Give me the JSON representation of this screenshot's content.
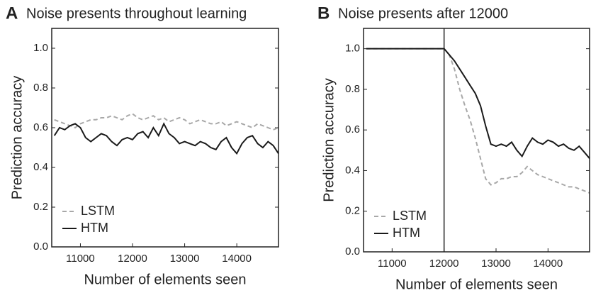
{
  "chart_data": [
    {
      "type": "line",
      "panel_label": "A",
      "title": "Noise presents throughout learning",
      "xlabel": "Number of elements seen",
      "ylabel": "Prediction accuracy",
      "x": [
        10500,
        10600,
        10700,
        10800,
        10900,
        11000,
        11100,
        11200,
        11300,
        11400,
        11500,
        11600,
        11700,
        11800,
        11900,
        12000,
        12100,
        12200,
        12300,
        12400,
        12500,
        12600,
        12700,
        12800,
        12900,
        13000,
        13100,
        13200,
        13300,
        13400,
        13500,
        13600,
        13700,
        13800,
        13900,
        14000,
        14100,
        14200,
        14300,
        14400,
        14500,
        14600,
        14700,
        14800
      ],
      "series": [
        {
          "name": "LSTM",
          "color": "#a8a8a8",
          "linestyle": "dashed",
          "values": [
            0.64,
            0.63,
            0.62,
            0.61,
            0.6,
            0.62,
            0.63,
            0.64,
            0.64,
            0.65,
            0.65,
            0.66,
            0.65,
            0.64,
            0.66,
            0.67,
            0.65,
            0.64,
            0.65,
            0.66,
            0.64,
            0.65,
            0.63,
            0.64,
            0.65,
            0.64,
            0.62,
            0.63,
            0.64,
            0.63,
            0.62,
            0.62,
            0.63,
            0.61,
            0.62,
            0.63,
            0.62,
            0.61,
            0.6,
            0.62,
            0.61,
            0.6,
            0.59,
            0.6
          ]
        },
        {
          "name": "HTM",
          "color": "#1a1a1a",
          "linestyle": "solid",
          "values": [
            0.56,
            0.6,
            0.59,
            0.61,
            0.62,
            0.6,
            0.55,
            0.53,
            0.55,
            0.57,
            0.56,
            0.53,
            0.51,
            0.54,
            0.55,
            0.54,
            0.57,
            0.58,
            0.55,
            0.6,
            0.56,
            0.62,
            0.57,
            0.55,
            0.52,
            0.53,
            0.52,
            0.51,
            0.53,
            0.52,
            0.5,
            0.49,
            0.53,
            0.55,
            0.5,
            0.47,
            0.52,
            0.55,
            0.56,
            0.52,
            0.5,
            0.53,
            0.51,
            0.47
          ]
        }
      ],
      "xlim": [
        10450,
        14800
      ],
      "xticks": [
        11000,
        12000,
        13000,
        14000
      ],
      "ylim": [
        0,
        1.1
      ],
      "yticks": [
        {
          "value": 0,
          "label": "0.0"
        },
        0.2,
        0.4,
        0.6,
        0.8,
        {
          "value": 1,
          "label": "1.0"
        }
      ],
      "legend": "lower left"
    },
    {
      "type": "line",
      "panel_label": "B",
      "title": "Noise presents after 12000",
      "xlabel": "Number of elements seen",
      "ylabel": "Prediction accuracy",
      "x": [
        10500,
        10600,
        10700,
        10800,
        10900,
        11000,
        11100,
        11200,
        11300,
        11400,
        11500,
        11600,
        11700,
        11800,
        11900,
        12000,
        12100,
        12200,
        12300,
        12400,
        12500,
        12600,
        12700,
        12800,
        12900,
        13000,
        13100,
        13200,
        13300,
        13400,
        13500,
        13600,
        13700,
        13800,
        13900,
        14000,
        14100,
        14200,
        14300,
        14400,
        14500,
        14600,
        14700,
        14800
      ],
      "series": [
        {
          "name": "LSTM",
          "color": "#a8a8a8",
          "linestyle": "dashed",
          "values": [
            1,
            1,
            1,
            1,
            1,
            1,
            1,
            1,
            1,
            1,
            1,
            1,
            1,
            1,
            1,
            1,
            0.97,
            0.9,
            0.8,
            0.72,
            0.65,
            0.56,
            0.46,
            0.36,
            0.33,
            0.34,
            0.36,
            0.36,
            0.37,
            0.37,
            0.39,
            0.42,
            0.4,
            0.38,
            0.37,
            0.36,
            0.35,
            0.34,
            0.33,
            0.32,
            0.32,
            0.31,
            0.3,
            0.29
          ]
        },
        {
          "name": "HTM",
          "color": "#1a1a1a",
          "linestyle": "solid",
          "values": [
            1,
            1,
            1,
            1,
            1,
            1,
            1,
            1,
            1,
            1,
            1,
            1,
            1,
            1,
            1,
            1,
            0.97,
            0.94,
            0.9,
            0.86,
            0.82,
            0.78,
            0.72,
            0.62,
            0.53,
            0.52,
            0.53,
            0.52,
            0.54,
            0.5,
            0.47,
            0.52,
            0.56,
            0.54,
            0.53,
            0.55,
            0.54,
            0.52,
            0.53,
            0.51,
            0.5,
            0.52,
            0.49,
            0.46
          ]
        }
      ],
      "vline": 12000,
      "xlim": [
        10450,
        14800
      ],
      "xticks": [
        11000,
        12000,
        13000,
        14000
      ],
      "ylim": [
        0,
        1.1
      ],
      "yticks": [
        {
          "value": 0,
          "label": "0.0"
        },
        0.2,
        0.4,
        0.6,
        0.8,
        {
          "value": 1,
          "label": "1.0"
        }
      ],
      "legend": "lower left"
    }
  ]
}
